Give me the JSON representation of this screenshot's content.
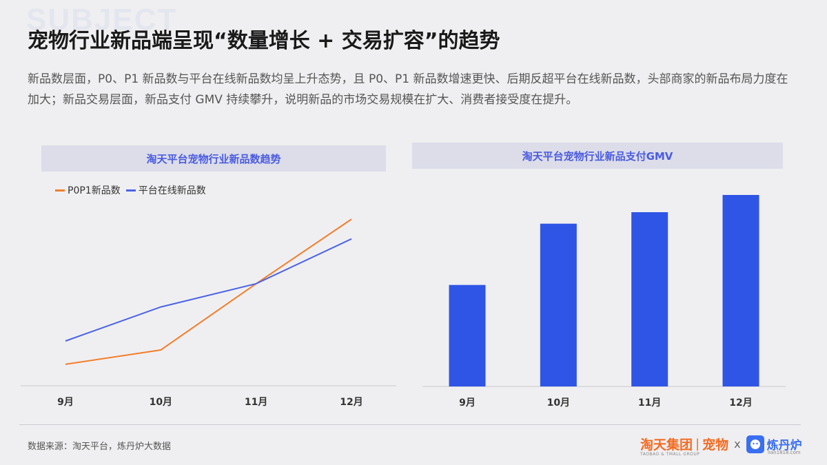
{
  "watermark": "SUBJECT",
  "title": "宠物行业新品端呈现“数量增长 + 交易扩容”的趋势",
  "description": "新品数层面，P0、P1 新品数与平台在线新品数均呈上升态势，且 P0、P1 新品数增速更快、后期反超平台在线新品数，头部商家的新品布局力度在加大；新品交易层面，新品支付 GMV 持续攀升，说明新品的市场交易规模在扩大、消费者接受度在提升。",
  "chart_data": [
    {
      "type": "line",
      "title": "淘天平台宠物行业新品数趋势",
      "categories": [
        "9月",
        "10月",
        "11月",
        "12月"
      ],
      "series": [
        {
          "name": "P0P1新品数",
          "color": "#f37d2a",
          "values": [
            12,
            20,
            57,
            93
          ]
        },
        {
          "name": "平台在线新品数",
          "color": "#4a62e8",
          "values": [
            25,
            44,
            57,
            82
          ]
        }
      ],
      "ylim": [
        0,
        100
      ],
      "legend": "top-left",
      "grid": false
    },
    {
      "type": "bar",
      "title": "淘天平台宠物行业新品支付GMV",
      "categories": [
        "9月",
        "10月",
        "11月",
        "12月"
      ],
      "values": [
        53,
        85,
        91,
        100
      ],
      "color": "#2f55e6",
      "ylim": [
        0,
        100
      ],
      "grid": false
    }
  ],
  "footer": {
    "source": "数据来源：淘天平台，炼丹炉大数据",
    "brand_taotian": "淘天集团",
    "brand_taotian_sub": "TAOBAO & TMALL GROUP",
    "brand_sep": "|",
    "brand_pet": "宠物",
    "brand_x": "x",
    "brand_liandanlu": "炼丹炉",
    "brand_liandanlu_sub": "lian1818.com"
  }
}
